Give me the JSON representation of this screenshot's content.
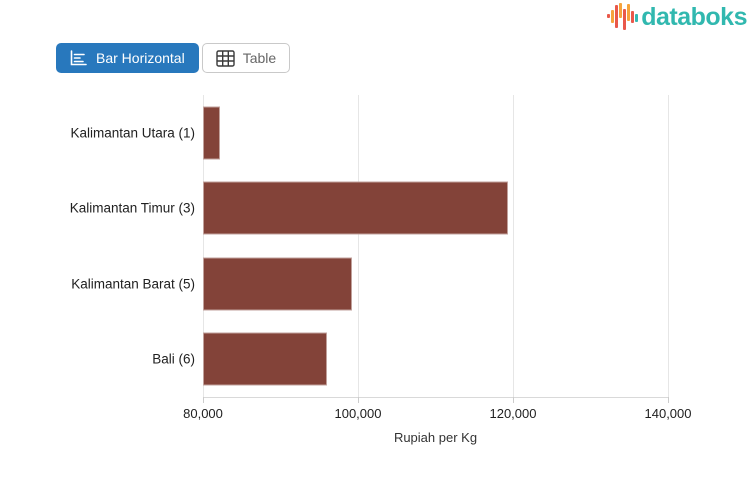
{
  "logo": {
    "text": "databoks",
    "icon": "databoks-bars-icon",
    "colors": {
      "text": "#31b8af",
      "orange": "#f6a33c",
      "red": "#e9584a",
      "teal": "#35b8b2"
    }
  },
  "toolbar": {
    "bar_horizontal_label": "Bar Horizontal",
    "table_label": "Table",
    "active_button": "Bar Horizontal",
    "active_color": "#2878bd"
  },
  "chart_data": {
    "type": "bar",
    "orientation": "horizontal",
    "categories": [
      "Kalimantan Utara (1)",
      "Kalimantan Timur (3)",
      "Kalimantan Barat (5)",
      "Bali (6)"
    ],
    "values": [
      82200,
      119400,
      99200,
      96000
    ],
    "title": "",
    "xlabel": "Rupiah per Kg",
    "ylabel": "",
    "xlim": [
      80000,
      140000
    ],
    "xticks": [
      80000,
      100000,
      120000,
      140000
    ],
    "xtick_labels": [
      "80,000",
      "100,000",
      "120,000",
      "140,000"
    ],
    "bar_color": "#834339",
    "grid": "vertical-gridlines-only",
    "legend": "none"
  }
}
